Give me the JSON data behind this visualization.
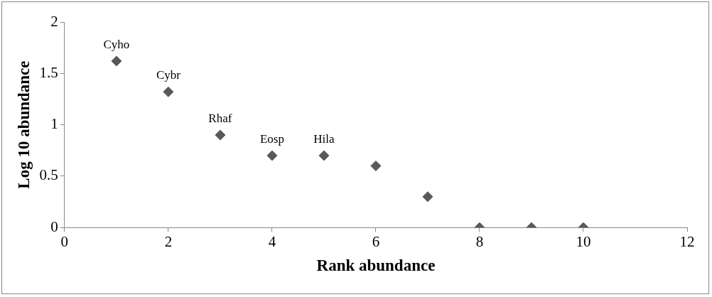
{
  "chart_data": {
    "type": "scatter",
    "xlabel": "Rank abundance",
    "ylabel": "Log 10 abundance",
    "x": [
      1,
      2,
      3,
      4,
      5,
      6,
      7,
      8,
      9,
      10
    ],
    "series": [
      {
        "color": "#595959",
        "values": [
          1.62,
          1.32,
          0.9,
          0.7,
          0.7,
          0.6,
          0.3,
          0,
          0,
          0
        ]
      }
    ],
    "xlim": [
      0,
      12
    ],
    "xticks": [
      0,
      2,
      4,
      6,
      8,
      10,
      12
    ],
    "ylim": [
      0,
      2
    ],
    "yticks": [
      0,
      0.5,
      1,
      1.5,
      2
    ],
    "marker": "diamond",
    "annotations": [
      {
        "text": "Cyho",
        "x": 1,
        "y": 1.62
      },
      {
        "text": "Cybr",
        "x": 2,
        "y": 1.32
      },
      {
        "text": "Rhaf",
        "x": 3,
        "y": 0.9
      },
      {
        "text": "Eosp",
        "x": 4,
        "y": 0.7
      },
      {
        "text": "Hila",
        "x": 5,
        "y": 0.7
      }
    ]
  }
}
